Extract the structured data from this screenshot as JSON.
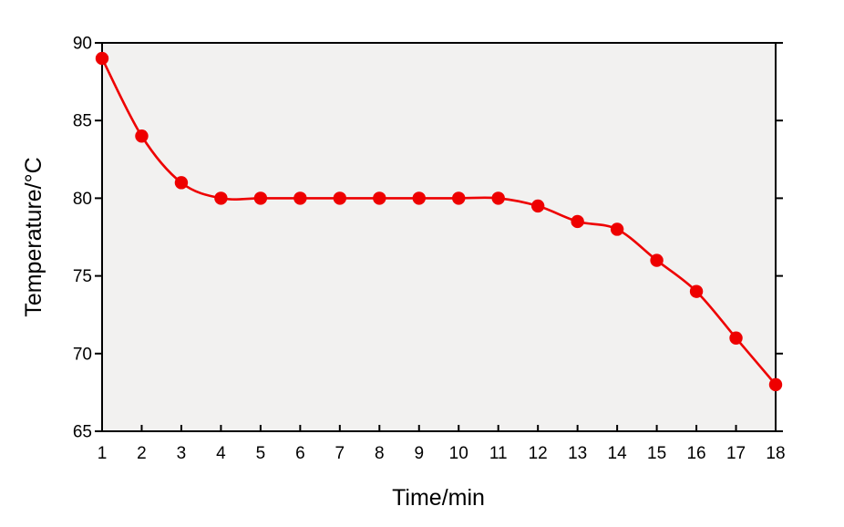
{
  "chart_data": {
    "type": "line",
    "title": "",
    "xlabel": "Time/min",
    "ylabel": "Temperature/°C",
    "x": [
      1,
      2,
      3,
      4,
      5,
      6,
      7,
      8,
      9,
      10,
      11,
      12,
      13,
      14,
      15,
      16,
      17,
      18
    ],
    "series": [
      {
        "name": "temperature",
        "values": [
          89,
          84,
          81,
          80,
          80,
          80,
          80,
          80,
          80,
          80,
          80,
          79.5,
          78.5,
          78,
          76,
          74,
          71,
          68
        ]
      }
    ],
    "xlim": [
      1,
      18
    ],
    "ylim": [
      65,
      90
    ],
    "x_ticks": [
      1,
      2,
      3,
      4,
      5,
      6,
      7,
      8,
      9,
      10,
      11,
      12,
      13,
      14,
      15,
      16,
      17,
      18
    ],
    "y_ticks": [
      65,
      70,
      75,
      80,
      85,
      90
    ],
    "grid": false,
    "legend": "none",
    "line_color": "#ee0000",
    "marker": "circle",
    "plot_bg": "#f2f1f0",
    "axis_color": "#000000"
  }
}
